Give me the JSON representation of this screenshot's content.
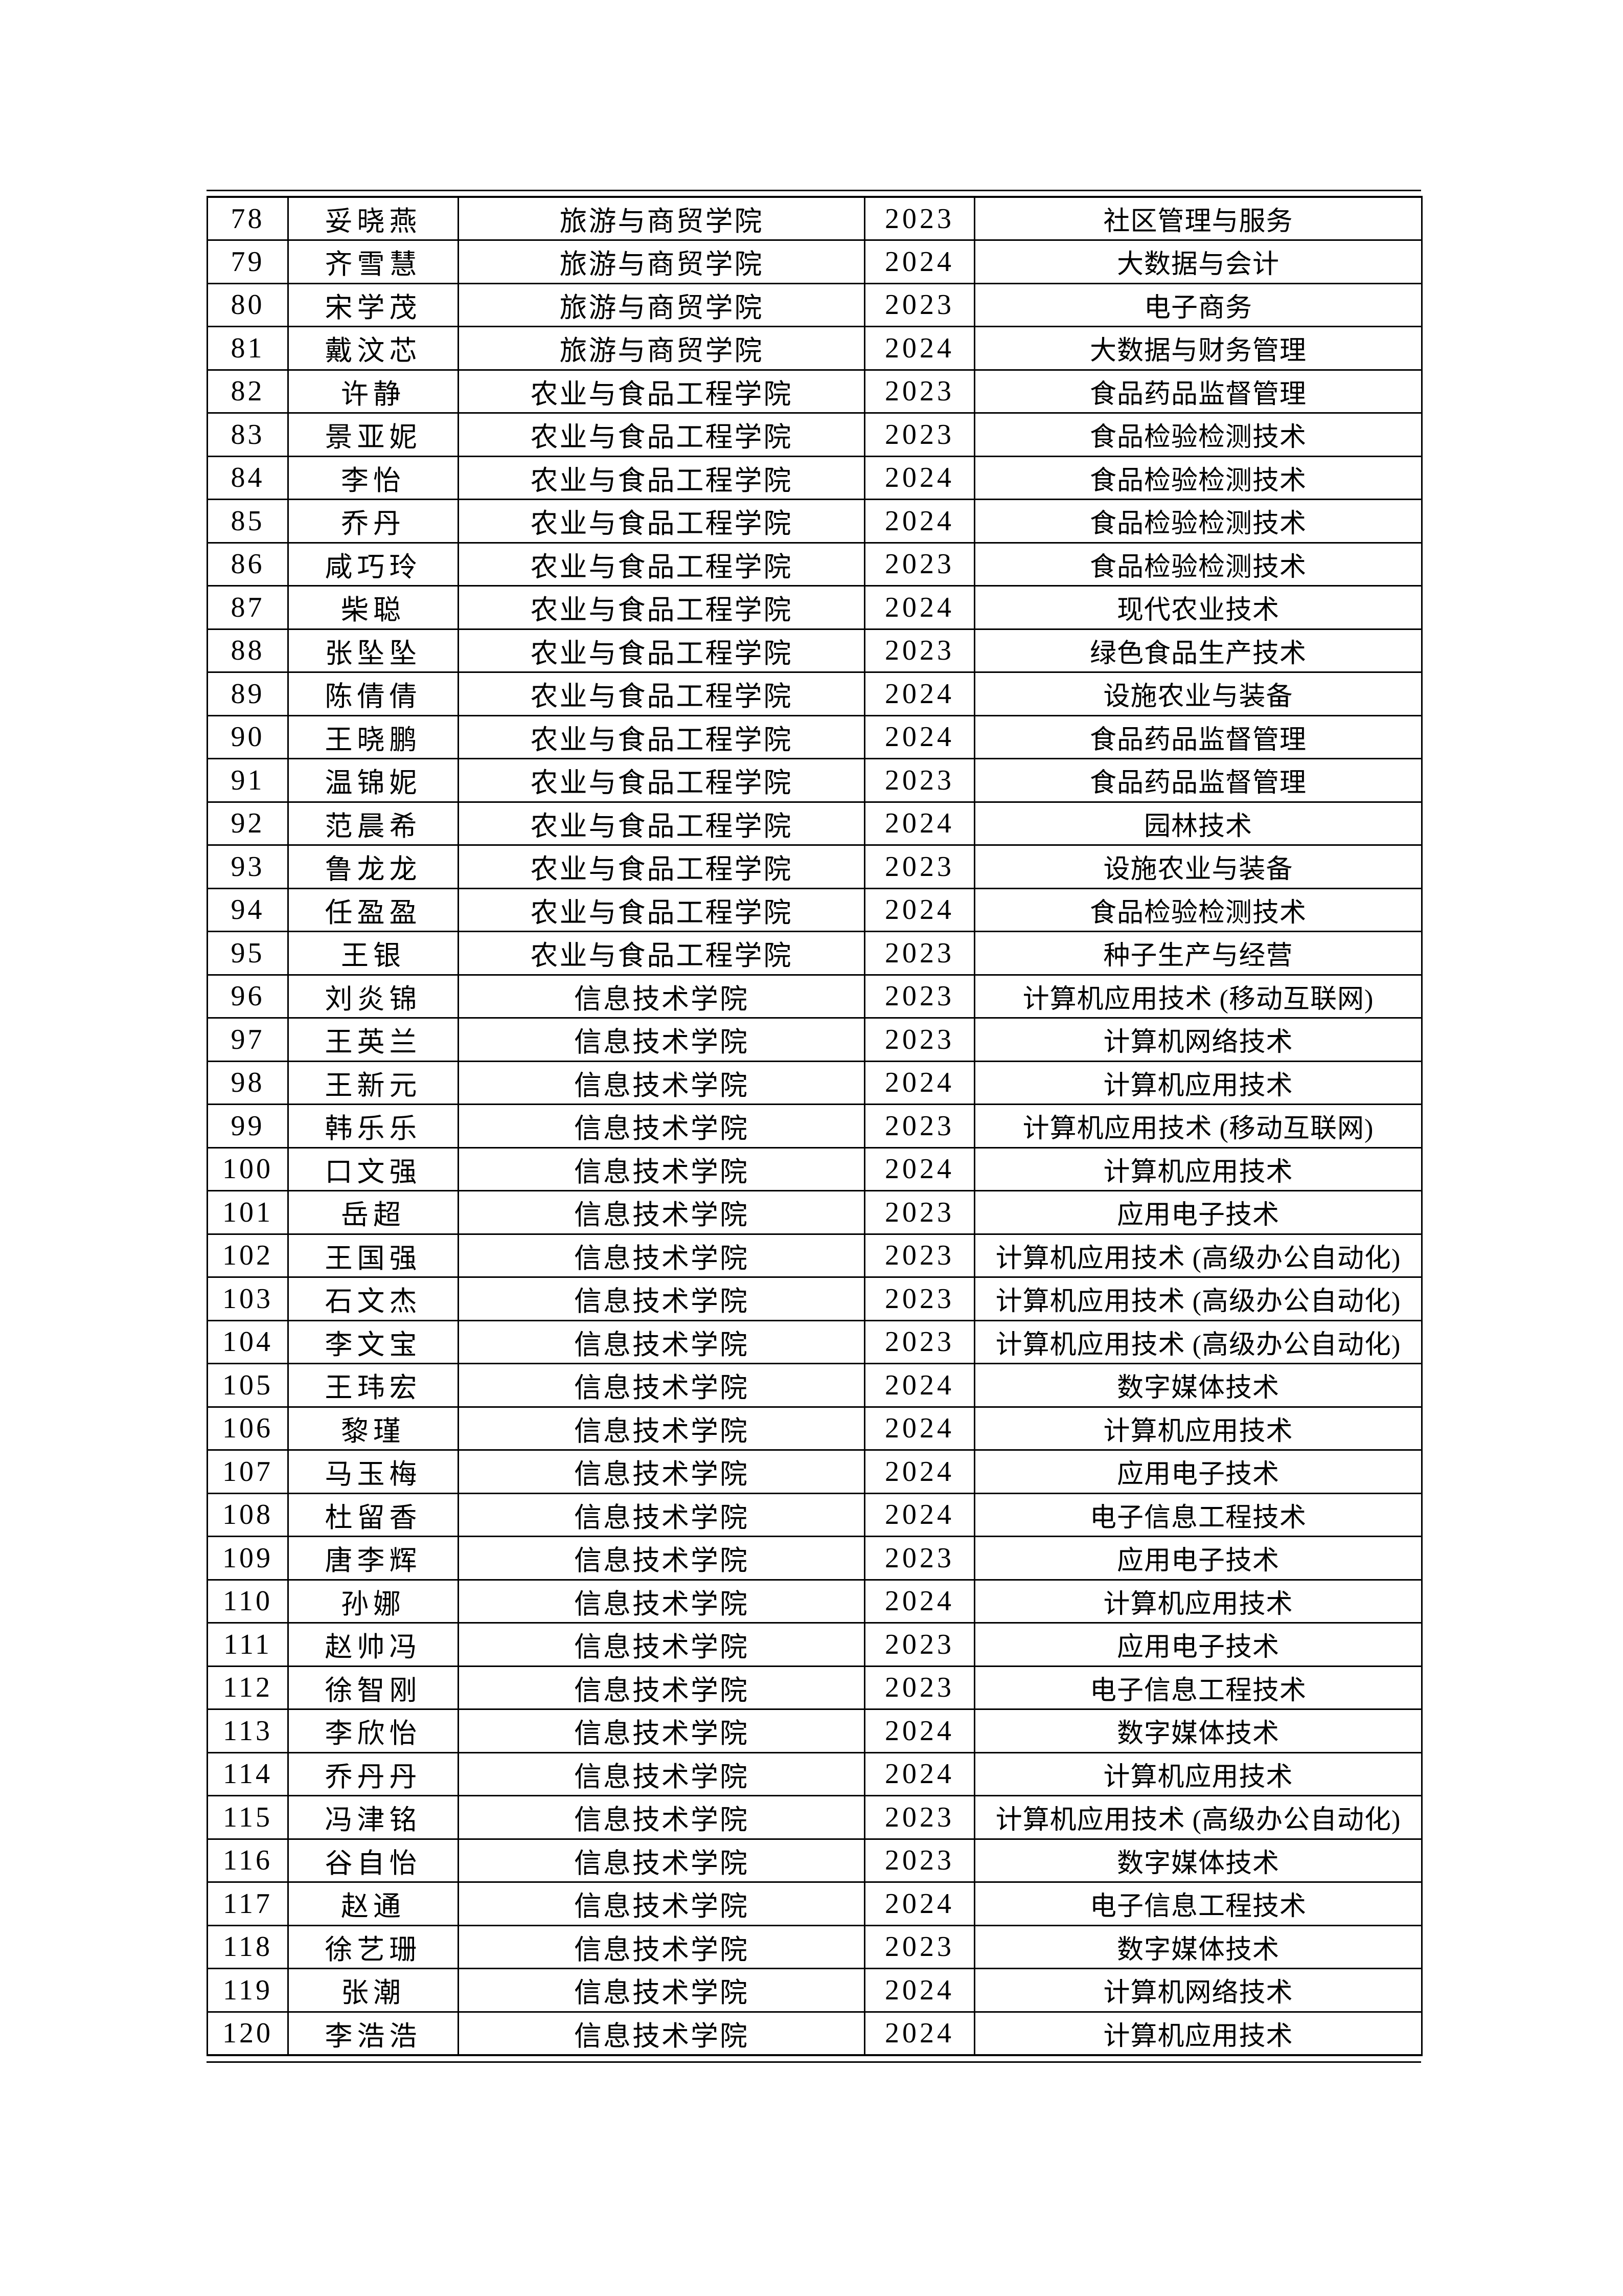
{
  "colors": {
    "page_background": "#ffffff",
    "grid_line": "#000000",
    "text": "#000000"
  },
  "table": {
    "description_visible_header": "",
    "row_keys": [
      "no",
      "name",
      "college",
      "year",
      "major"
    ],
    "rows": [
      {
        "no": "78",
        "name": "妥晓燕",
        "college": "旅游与商贸学院",
        "year": "2023",
        "major": "社区管理与服务"
      },
      {
        "no": "79",
        "name": "齐雪慧",
        "college": "旅游与商贸学院",
        "year": "2024",
        "major": "大数据与会计"
      },
      {
        "no": "80",
        "name": "宋学茂",
        "college": "旅游与商贸学院",
        "year": "2023",
        "major": "电子商务"
      },
      {
        "no": "81",
        "name": "戴汶芯",
        "college": "旅游与商贸学院",
        "year": "2024",
        "major": "大数据与财务管理"
      },
      {
        "no": "82",
        "name": "许静",
        "college": "农业与食品工程学院",
        "year": "2023",
        "major": "食品药品监督管理"
      },
      {
        "no": "83",
        "name": "景亚妮",
        "college": "农业与食品工程学院",
        "year": "2023",
        "major": "食品检验检测技术"
      },
      {
        "no": "84",
        "name": "李怡",
        "college": "农业与食品工程学院",
        "year": "2024",
        "major": "食品检验检测技术"
      },
      {
        "no": "85",
        "name": "乔丹",
        "college": "农业与食品工程学院",
        "year": "2024",
        "major": "食品检验检测技术"
      },
      {
        "no": "86",
        "name": "咸巧玲",
        "college": "农业与食品工程学院",
        "year": "2023",
        "major": "食品检验检测技术"
      },
      {
        "no": "87",
        "name": "柴聪",
        "college": "农业与食品工程学院",
        "year": "2024",
        "major": "现代农业技术"
      },
      {
        "no": "88",
        "name": "张坠坠",
        "college": "农业与食品工程学院",
        "year": "2023",
        "major": "绿色食品生产技术"
      },
      {
        "no": "89",
        "name": "陈倩倩",
        "college": "农业与食品工程学院",
        "year": "2024",
        "major": "设施农业与装备"
      },
      {
        "no": "90",
        "name": "王晓鹏",
        "college": "农业与食品工程学院",
        "year": "2024",
        "major": "食品药品监督管理"
      },
      {
        "no": "91",
        "name": "温锦妮",
        "college": "农业与食品工程学院",
        "year": "2023",
        "major": "食品药品监督管理"
      },
      {
        "no": "92",
        "name": "范晨希",
        "college": "农业与食品工程学院",
        "year": "2024",
        "major": "园林技术"
      },
      {
        "no": "93",
        "name": "鲁龙龙",
        "college": "农业与食品工程学院",
        "year": "2023",
        "major": "设施农业与装备"
      },
      {
        "no": "94",
        "name": "任盈盈",
        "college": "农业与食品工程学院",
        "year": "2024",
        "major": "食品检验检测技术"
      },
      {
        "no": "95",
        "name": "王银",
        "college": "农业与食品工程学院",
        "year": "2023",
        "major": "种子生产与经营"
      },
      {
        "no": "96",
        "name": "刘炎锦",
        "college": "信息技术学院",
        "year": "2023",
        "major": "计算机应用技术 (移动互联网)"
      },
      {
        "no": "97",
        "name": "王英兰",
        "college": "信息技术学院",
        "year": "2023",
        "major": "计算机网络技术"
      },
      {
        "no": "98",
        "name": "王新元",
        "college": "信息技术学院",
        "year": "2024",
        "major": "计算机应用技术"
      },
      {
        "no": "99",
        "name": "韩乐乐",
        "college": "信息技术学院",
        "year": "2023",
        "major": "计算机应用技术 (移动互联网)"
      },
      {
        "no": "100",
        "name": "口文强",
        "college": "信息技术学院",
        "year": "2024",
        "major": "计算机应用技术"
      },
      {
        "no": "101",
        "name": "岳超",
        "college": "信息技术学院",
        "year": "2023",
        "major": "应用电子技术"
      },
      {
        "no": "102",
        "name": "王国强",
        "college": "信息技术学院",
        "year": "2023",
        "major": "计算机应用技术 (高级办公自动化)"
      },
      {
        "no": "103",
        "name": "石文杰",
        "college": "信息技术学院",
        "year": "2023",
        "major": "计算机应用技术 (高级办公自动化)"
      },
      {
        "no": "104",
        "name": "李文宝",
        "college": "信息技术学院",
        "year": "2023",
        "major": "计算机应用技术 (高级办公自动化)"
      },
      {
        "no": "105",
        "name": "王玮宏",
        "college": "信息技术学院",
        "year": "2024",
        "major": "数字媒体技术"
      },
      {
        "no": "106",
        "name": "黎瑾",
        "college": "信息技术学院",
        "year": "2024",
        "major": "计算机应用技术"
      },
      {
        "no": "107",
        "name": "马玉梅",
        "college": "信息技术学院",
        "year": "2024",
        "major": "应用电子技术"
      },
      {
        "no": "108",
        "name": "杜留香",
        "college": "信息技术学院",
        "year": "2024",
        "major": "电子信息工程技术"
      },
      {
        "no": "109",
        "name": "唐李辉",
        "college": "信息技术学院",
        "year": "2023",
        "major": "应用电子技术"
      },
      {
        "no": "110",
        "name": "孙娜",
        "college": "信息技术学院",
        "year": "2024",
        "major": "计算机应用技术"
      },
      {
        "no": "111",
        "name": "赵帅冯",
        "college": "信息技术学院",
        "year": "2023",
        "major": "应用电子技术"
      },
      {
        "no": "112",
        "name": "徐智刚",
        "college": "信息技术学院",
        "year": "2023",
        "major": "电子信息工程技术"
      },
      {
        "no": "113",
        "name": "李欣怡",
        "college": "信息技术学院",
        "year": "2024",
        "major": "数字媒体技术"
      },
      {
        "no": "114",
        "name": "乔丹丹",
        "college": "信息技术学院",
        "year": "2024",
        "major": "计算机应用技术"
      },
      {
        "no": "115",
        "name": "冯津铭",
        "college": "信息技术学院",
        "year": "2023",
        "major": "计算机应用技术 (高级办公自动化)"
      },
      {
        "no": "116",
        "name": "谷自怡",
        "college": "信息技术学院",
        "year": "2023",
        "major": "数字媒体技术"
      },
      {
        "no": "117",
        "name": "赵通",
        "college": "信息技术学院",
        "year": "2024",
        "major": "电子信息工程技术"
      },
      {
        "no": "118",
        "name": "徐艺珊",
        "college": "信息技术学院",
        "year": "2023",
        "major": "数字媒体技术"
      },
      {
        "no": "119",
        "name": "张潮",
        "college": "信息技术学院",
        "year": "2024",
        "major": "计算机网络技术"
      },
      {
        "no": "120",
        "name": "李浩浩",
        "college": "信息技术学院",
        "year": "2024",
        "major": "计算机应用技术"
      }
    ]
  }
}
